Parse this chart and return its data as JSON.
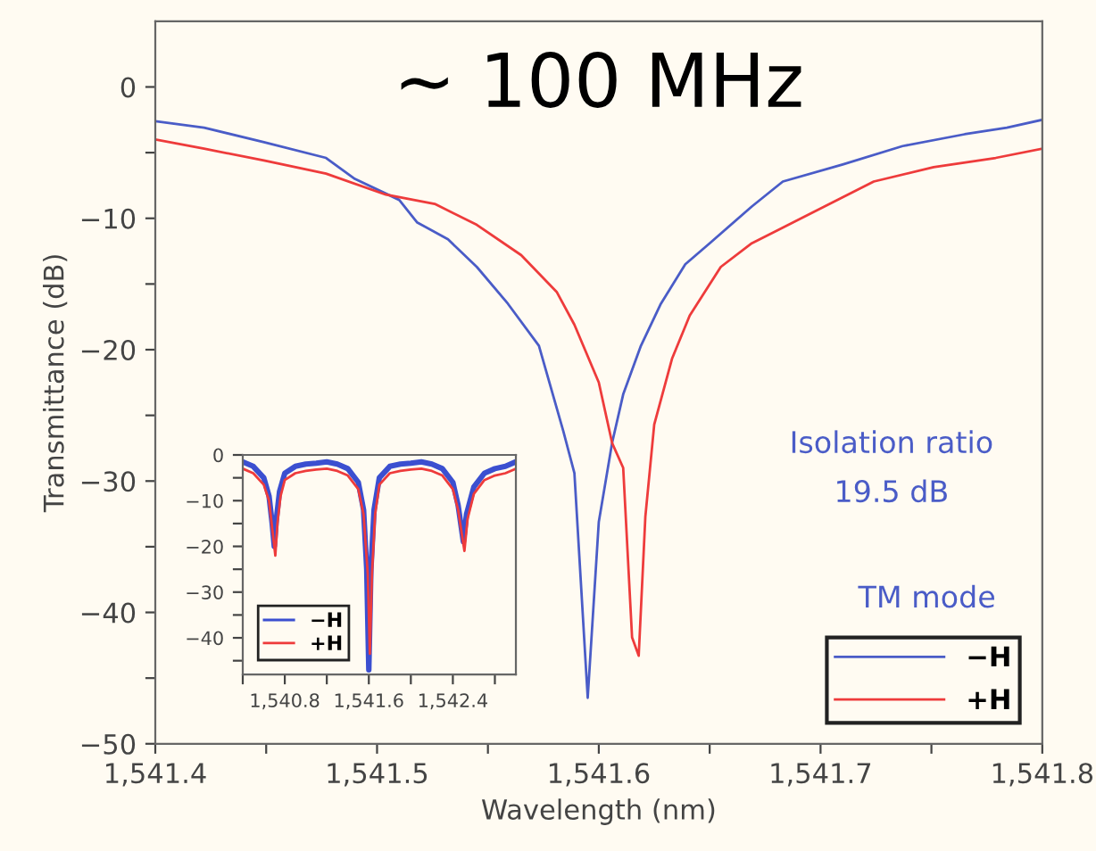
{
  "chart_data": [
    {
      "type": "line",
      "xlabel": "Wavelength (nm)",
      "ylabel": "Transmittance (dB)",
      "xlim": [
        1541.4,
        1541.8
      ],
      "ylim": [
        -50,
        5
      ],
      "xticks": [
        {
          "value": 1541.4,
          "label": "1,541.4"
        },
        {
          "value": 1541.45,
          "label": null
        },
        {
          "value": 1541.5,
          "label": "1,541.5"
        },
        {
          "value": 1541.55,
          "label": null
        },
        {
          "value": 1541.6,
          "label": "1,541.6"
        },
        {
          "value": 1541.65,
          "label": null
        },
        {
          "value": 1541.7,
          "label": "1,541.7"
        },
        {
          "value": 1541.75,
          "label": null
        },
        {
          "value": 1541.8,
          "label": "1,541.8"
        }
      ],
      "yticks": [
        {
          "value": -50,
          "label": "−50"
        },
        {
          "value": -45,
          "label": null
        },
        {
          "value": -40,
          "label": "−40"
        },
        {
          "value": -35,
          "label": null
        },
        {
          "value": -30,
          "label": "−30"
        },
        {
          "value": -25,
          "label": null
        },
        {
          "value": -20,
          "label": "−20"
        },
        {
          "value": -15,
          "label": null
        },
        {
          "value": -10,
          "label": "−10"
        },
        {
          "value": -5,
          "label": null
        },
        {
          "value": 0,
          "label": "0"
        }
      ],
      "grid": false,
      "legend": "bottom right",
      "marker": "none",
      "line_style": "solid",
      "annotations": [
        "~ 100 MHz",
        "Isolation ratio\n19.5 dB",
        "TM mode"
      ],
      "series": [
        {
          "name": "−H",
          "color": "#4a5cc7",
          "x": [
            1541.4,
            1541.422,
            1541.449,
            1541.477,
            1541.49,
            1541.51,
            1541.518,
            1541.532,
            1541.545,
            1541.559,
            1541.573,
            1541.584,
            1541.589,
            1541.595,
            1541.6,
            1541.606,
            1541.611,
            1541.619,
            1541.628,
            1541.639,
            1541.65,
            1541.669,
            1541.683,
            1541.71,
            1541.737,
            1541.765,
            1541.784,
            1541.8
          ],
          "values": [
            -2.6,
            -3.1,
            -4.2,
            -5.4,
            -7.0,
            -8.6,
            -10.3,
            -11.6,
            -13.7,
            -16.5,
            -19.7,
            -26.2,
            -29.4,
            -46.5,
            -33.1,
            -27.1,
            -23.4,
            -19.7,
            -16.5,
            -13.5,
            -11.9,
            -9.1,
            -7.2,
            -5.9,
            -4.5,
            -3.6,
            -3.1,
            -2.5
          ]
        },
        {
          "name": "+H",
          "color": "#ee3b3b",
          "x": [
            1541.4,
            1541.422,
            1541.449,
            1541.477,
            1541.504,
            1541.526,
            1541.545,
            1541.565,
            1541.581,
            1541.589,
            1541.6,
            1541.606,
            1541.611,
            1541.615,
            1541.618,
            1541.621,
            1541.625,
            1541.633,
            1541.641,
            1541.655,
            1541.669,
            1541.696,
            1541.724,
            1541.751,
            1541.779,
            1541.8
          ],
          "values": [
            -4.0,
            -4.7,
            -5.6,
            -6.6,
            -8.2,
            -8.9,
            -10.5,
            -12.8,
            -15.6,
            -18.1,
            -22.5,
            -27.1,
            -29.0,
            -41.9,
            -43.3,
            -32.7,
            -25.7,
            -20.7,
            -17.4,
            -13.7,
            -11.9,
            -9.6,
            -7.2,
            -6.1,
            -5.4,
            -4.7
          ]
        }
      ]
    },
    {
      "type": "line",
      "xlim": [
        1540.4,
        1543.0
      ],
      "ylim": [
        -48,
        0
      ],
      "xticks": [
        {
          "value": 1540.4,
          "label": null
        },
        {
          "value": 1540.8,
          "label": "1,540.8"
        },
        {
          "value": 1541.2,
          "label": null
        },
        {
          "value": 1541.6,
          "label": "1,541.6"
        },
        {
          "value": 1542.0,
          "label": null
        },
        {
          "value": 1542.4,
          "label": "1,542.4"
        },
        {
          "value": 1542.8,
          "label": null
        }
      ],
      "yticks": [
        {
          "value": -45,
          "label": null
        },
        {
          "value": -40,
          "label": "−40"
        },
        {
          "value": -35,
          "label": null
        },
        {
          "value": -30,
          "label": "−30"
        },
        {
          "value": -25,
          "label": null
        },
        {
          "value": -20,
          "label": "−20"
        },
        {
          "value": -15,
          "label": null
        },
        {
          "value": -10,
          "label": "−10"
        },
        {
          "value": -5,
          "label": null
        },
        {
          "value": 0,
          "label": "0"
        }
      ],
      "grid": false,
      "legend": "bottom left",
      "marker": "none",
      "line_style": "solid",
      "series": [
        {
          "name": "−H",
          "color": "#3b4fd0",
          "x": [
            1540.4,
            1540.5,
            1540.6,
            1540.65,
            1540.68,
            1540.7,
            1540.72,
            1540.75,
            1540.8,
            1540.9,
            1541.0,
            1541.1,
            1541.2,
            1541.3,
            1541.4,
            1541.5,
            1541.55,
            1541.58,
            1541.6,
            1541.62,
            1541.65,
            1541.7,
            1541.8,
            1541.9,
            1542.0,
            1542.1,
            1542.2,
            1542.3,
            1542.4,
            1542.45,
            1542.5,
            1542.53,
            1542.6,
            1542.7,
            1542.8,
            1542.9,
            1543.0
          ],
          "values": [
            -1.5,
            -2.5,
            -5,
            -9,
            -15,
            -20,
            -14,
            -8,
            -4,
            -2.5,
            -2,
            -1.8,
            -1.5,
            -2,
            -3,
            -6,
            -12,
            -25,
            -47,
            -25,
            -12,
            -5,
            -2.5,
            -2,
            -1.8,
            -1.5,
            -2,
            -3,
            -6,
            -11,
            -19,
            -13,
            -7,
            -4,
            -3,
            -2.5,
            -1.5
          ]
        },
        {
          "name": "+H",
          "color": "#ee3b3b",
          "x": [
            1540.4,
            1540.5,
            1540.6,
            1540.65,
            1540.68,
            1540.71,
            1540.73,
            1540.76,
            1540.8,
            1540.9,
            1541.0,
            1541.1,
            1541.2,
            1541.3,
            1541.4,
            1541.5,
            1541.55,
            1541.59,
            1541.61,
            1541.63,
            1541.66,
            1541.7,
            1541.8,
            1541.9,
            1542.0,
            1542.1,
            1542.2,
            1542.3,
            1542.4,
            1542.45,
            1542.51,
            1542.54,
            1542.6,
            1542.7,
            1542.8,
            1542.9,
            1543.0
          ],
          "values": [
            -3,
            -4,
            -6.5,
            -10,
            -16,
            -22,
            -15,
            -9,
            -5.5,
            -4,
            -3.5,
            -3.2,
            -3,
            -3.5,
            -4.5,
            -7.5,
            -13,
            -26,
            -43.5,
            -26,
            -13,
            -6.5,
            -4,
            -3.5,
            -3.2,
            -3,
            -3.5,
            -4.5,
            -7.5,
            -12,
            -21,
            -14,
            -8.5,
            -5.5,
            -4.5,
            -4,
            -3
          ]
        }
      ]
    }
  ]
}
